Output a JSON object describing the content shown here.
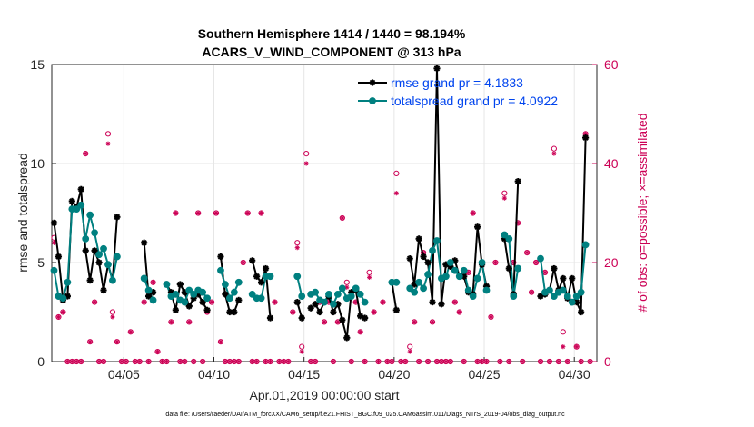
{
  "chart_data": {
    "type": "line",
    "title_line1": "Southern Hemisphere 1414 / 1440 = 98.194%",
    "title_line2": "ACARS_V_WIND_COMPONENT @ 313 hPa",
    "xlabel": "Apr.01,2019 00:00:00 start",
    "ylabel": "rmse and totalspread",
    "ylabel_right": "# of obs: o=possible; ×=assimilated",
    "footnote": "data file: /Users/raeder/DAI/ATM_forcXX/CAM6_setup/f.e21.FHIST_BGC.f09_025.CAM6assim.011/Diags_NTrS_2019-04/obs_diag_output.nc",
    "xlim": [
      1.0,
      31.25
    ],
    "ylim": [
      0,
      15
    ],
    "ylim_right": [
      0,
      60
    ],
    "xticks": [
      5,
      10,
      15,
      20,
      25,
      30
    ],
    "xtick_labels": [
      "04/05",
      "04/10",
      "04/15",
      "04/20",
      "04/25",
      "04/30"
    ],
    "yticks": [
      0,
      5,
      10,
      15
    ],
    "yticks_right": [
      0,
      20,
      40,
      60
    ],
    "colors": {
      "rmse": "#000000",
      "spread": "#008080",
      "obs": "#cc0055",
      "legend_text": "#0044ee"
    },
    "series": [
      {
        "name": "rmse grand pr = 4.1833",
        "x": [
          1.125,
          1.375,
          1.625,
          1.875,
          2.125,
          2.375,
          2.625,
          2.875,
          3.125,
          3.375,
          3.625,
          3.875,
          4.125,
          4.375,
          4.625,
          4.875,
          5.125,
          5.375,
          5.625,
          5.875,
          6.125,
          6.375,
          6.625,
          6.875,
          7.125,
          7.375,
          7.625,
          7.875,
          8.125,
          8.375,
          8.625,
          8.875,
          9.125,
          9.375,
          9.625,
          9.875,
          10.125,
          10.375,
          10.625,
          10.875,
          11.125,
          11.375,
          11.625,
          11.875,
          12.125,
          12.375,
          12.625,
          12.875,
          13.125,
          13.375,
          13.625,
          13.875,
          14.125,
          14.375,
          14.625,
          14.875,
          15.125,
          15.375,
          15.625,
          15.875,
          16.125,
          16.375,
          16.625,
          16.875,
          17.125,
          17.375,
          17.625,
          17.875,
          18.125,
          18.375,
          18.625,
          18.875,
          19.125,
          19.375,
          19.625,
          19.875,
          20.125,
          20.375,
          20.625,
          20.875,
          21.125,
          21.375,
          21.625,
          21.875,
          22.125,
          22.375,
          22.625,
          22.875,
          23.125,
          23.375,
          23.625,
          23.875,
          24.125,
          24.375,
          24.625,
          24.875,
          25.125,
          25.375,
          25.625,
          25.875,
          26.125,
          26.375,
          26.625,
          26.875,
          27.125,
          27.375,
          27.625,
          27.875,
          28.125,
          28.375,
          28.625,
          28.875,
          29.125,
          29.375,
          29.625,
          29.875,
          30.125,
          30.375,
          30.625,
          30.875
        ],
        "y": [
          7.0,
          5.3,
          3.1,
          3.3,
          8.1,
          7.8,
          8.7,
          5.6,
          4.1,
          5.6,
          5.0,
          3.6,
          4.9,
          4.1,
          7.3,
          null,
          null,
          null,
          null,
          null,
          6.0,
          3.3,
          3.5,
          null,
          null,
          3.9,
          3.5,
          2.6,
          3.9,
          3.5,
          2.8,
          3.2,
          3.4,
          3.0,
          2.6,
          null,
          null,
          5.3,
          3.4,
          2.5,
          2.5,
          3.1,
          null,
          null,
          5.1,
          4.3,
          4.0,
          4.7,
          2.2,
          null,
          null,
          null,
          null,
          null,
          3.0,
          2.2,
          null,
          2.7,
          2.9,
          2.5,
          3.0,
          3.3,
          2.5,
          2.9,
          2.1,
          1.2,
          3.5,
          3.6,
          2.3,
          2.2,
          null,
          null,
          null,
          null,
          null,
          4.0,
          2.6,
          null,
          null,
          5.2,
          3.9,
          6.2,
          5.3,
          5.0,
          3.0,
          14.8,
          2.9,
          4.9,
          4.8,
          5.1,
          4.3,
          4.3,
          3.5,
          3.4,
          6.8,
          4.9,
          3.8,
          null,
          null,
          null,
          6.2,
          4.7,
          3.4,
          9.1,
          null,
          null,
          null,
          null,
          3.3,
          3.4,
          3.6,
          4.7,
          3.6,
          4.2,
          3.2,
          4.2,
          3.0,
          2.5,
          11.3,
          null
        ],
        "marker": "asterisk"
      },
      {
        "name": "totalspread grand pr = 4.0922",
        "x": [
          1.125,
          1.375,
          1.625,
          1.875,
          2.125,
          2.375,
          2.625,
          2.875,
          3.125,
          3.375,
          3.625,
          3.875,
          4.125,
          4.375,
          4.625,
          4.875,
          5.125,
          5.375,
          5.625,
          5.875,
          6.125,
          6.375,
          6.625,
          6.875,
          7.125,
          7.375,
          7.625,
          7.875,
          8.125,
          8.375,
          8.625,
          8.875,
          9.125,
          9.375,
          9.625,
          9.875,
          10.125,
          10.375,
          10.625,
          10.875,
          11.125,
          11.375,
          11.625,
          11.875,
          12.125,
          12.375,
          12.625,
          12.875,
          13.125,
          13.375,
          13.625,
          13.875,
          14.125,
          14.375,
          14.625,
          14.875,
          15.125,
          15.375,
          15.625,
          15.875,
          16.125,
          16.375,
          16.625,
          16.875,
          17.125,
          17.375,
          17.625,
          17.875,
          18.125,
          18.375,
          18.625,
          18.875,
          19.125,
          19.375,
          19.625,
          19.875,
          20.125,
          20.375,
          20.625,
          20.875,
          21.125,
          21.375,
          21.625,
          21.875,
          22.125,
          22.375,
          22.625,
          22.875,
          23.125,
          23.375,
          23.625,
          23.875,
          24.125,
          24.375,
          24.625,
          24.875,
          25.125,
          25.375,
          25.625,
          25.875,
          26.125,
          26.375,
          26.625,
          26.875,
          27.125,
          27.375,
          27.625,
          27.875,
          28.125,
          28.375,
          28.625,
          28.875,
          29.125,
          29.375,
          29.625,
          29.875,
          30.125,
          30.375,
          30.625,
          30.875
        ],
        "y": [
          4.6,
          3.3,
          3.2,
          4.0,
          7.7,
          7.7,
          7.9,
          6.2,
          7.4,
          6.5,
          5.4,
          5.7,
          4.9,
          4.1,
          5.3,
          null,
          null,
          null,
          null,
          null,
          4.2,
          3.6,
          3.1,
          null,
          null,
          3.9,
          3.3,
          3.4,
          3.1,
          3.0,
          3.6,
          3.4,
          3.6,
          3.5,
          3.2,
          null,
          null,
          4.6,
          3.9,
          3.2,
          3.5,
          4.0,
          null,
          null,
          3.4,
          3.2,
          3.2,
          4.3,
          4.3,
          null,
          null,
          null,
          null,
          null,
          4.3,
          3.3,
          null,
          3.4,
          3.5,
          3.1,
          3.0,
          3.4,
          2.9,
          3.4,
          3.7,
          3.2,
          3.3,
          3.7,
          3.4,
          3.0,
          null,
          null,
          null,
          null,
          null,
          4.0,
          4.0,
          null,
          null,
          3.7,
          3.5,
          4.0,
          3.7,
          4.4,
          5.6,
          6.1,
          4.2,
          4.3,
          5.0,
          4.6,
          4.3,
          4.6,
          3.6,
          3.3,
          4.2,
          5.0,
          3.6,
          null,
          null,
          null,
          6.4,
          6.2,
          3.3,
          4.7,
          null,
          null,
          null,
          null,
          5.2,
          3.5,
          3.6,
          3.3,
          3.5,
          3.6,
          3.3,
          3.0,
          3.3,
          3.5,
          5.9,
          null
        ],
        "marker": "circle"
      },
      {
        "name": "obs possible",
        "x": [
          1.125,
          1.375,
          1.625,
          1.875,
          2.125,
          2.375,
          2.625,
          2.875,
          3.125,
          3.375,
          3.625,
          3.875,
          4.125,
          4.375,
          4.625,
          4.875,
          5.125,
          5.375,
          5.625,
          5.875,
          6.125,
          6.375,
          6.625,
          6.875,
          7.125,
          7.375,
          7.625,
          7.875,
          8.125,
          8.375,
          8.625,
          8.875,
          9.125,
          9.375,
          9.625,
          9.875,
          10.125,
          10.375,
          10.625,
          10.875,
          11.125,
          11.375,
          11.625,
          11.875,
          12.125,
          12.375,
          12.625,
          12.875,
          13.125,
          13.375,
          13.625,
          13.875,
          14.125,
          14.375,
          14.625,
          14.875,
          15.125,
          15.375,
          15.625,
          15.875,
          16.125,
          16.375,
          16.625,
          16.875,
          17.125,
          17.375,
          17.625,
          17.875,
          18.125,
          18.375,
          18.625,
          18.875,
          19.125,
          19.375,
          19.625,
          19.875,
          20.125,
          20.375,
          20.625,
          20.875,
          21.125,
          21.375,
          21.625,
          21.875,
          22.125,
          22.375,
          22.625,
          22.875,
          23.125,
          23.375,
          23.625,
          23.875,
          24.125,
          24.375,
          24.625,
          24.875,
          25.125,
          25.375,
          25.625,
          25.875,
          26.125,
          26.375,
          26.625,
          26.875,
          27.125,
          27.375,
          27.625,
          27.875,
          28.125,
          28.375,
          28.625,
          28.875,
          29.125,
          29.375,
          29.625,
          29.875,
          30.125,
          30.375,
          30.625,
          30.875
        ],
        "y": [
          25,
          9,
          10,
          0,
          0,
          0,
          0,
          42,
          4,
          12,
          0,
          0,
          46,
          10,
          4,
          0,
          0,
          6,
          0,
          0,
          12,
          0,
          16,
          2,
          0,
          0,
          8,
          30,
          0,
          0,
          8,
          0,
          30,
          0,
          10,
          12,
          30,
          4,
          0,
          0,
          0,
          0,
          20,
          30,
          0,
          0,
          30,
          0,
          0,
          12,
          0,
          0,
          0,
          10,
          24,
          3,
          42,
          0,
          0,
          12,
          8,
          12,
          0,
          8,
          29,
          16,
          0,
          12,
          6,
          0,
          18,
          10,
          0,
          12,
          0,
          0,
          38,
          0,
          0,
          3,
          8,
          0,
          22,
          0,
          8,
          0,
          0,
          0,
          0,
          12,
          10,
          0,
          18,
          30,
          0,
          0,
          0,
          9,
          20,
          0,
          34,
          0,
          20,
          28,
          0,
          22,
          14,
          20,
          0,
          18,
          0,
          43,
          0,
          6,
          0,
          12,
          3,
          0,
          46,
          0
        ],
        "marker": "open-circle"
      },
      {
        "name": "obs assimilated",
        "x": [
          1.125,
          1.375,
          1.625,
          1.875,
          2.125,
          2.375,
          2.625,
          2.875,
          3.125,
          3.375,
          3.625,
          3.875,
          4.125,
          4.375,
          4.625,
          4.875,
          5.125,
          5.375,
          5.625,
          5.875,
          6.125,
          6.375,
          6.625,
          6.875,
          7.125,
          7.375,
          7.625,
          7.875,
          8.125,
          8.375,
          8.625,
          8.875,
          9.125,
          9.375,
          9.625,
          9.875,
          10.125,
          10.375,
          10.625,
          10.875,
          11.125,
          11.375,
          11.625,
          11.875,
          12.125,
          12.375,
          12.625,
          12.875,
          13.125,
          13.375,
          13.625,
          13.875,
          14.125,
          14.375,
          14.625,
          14.875,
          15.125,
          15.375,
          15.625,
          15.875,
          16.125,
          16.375,
          16.625,
          16.875,
          17.125,
          17.375,
          17.625,
          17.875,
          18.125,
          18.375,
          18.625,
          18.875,
          19.125,
          19.375,
          19.625,
          19.875,
          20.125,
          20.375,
          20.625,
          20.875,
          21.125,
          21.375,
          21.625,
          21.875,
          22.125,
          22.375,
          22.625,
          22.875,
          23.125,
          23.375,
          23.625,
          23.875,
          24.125,
          24.375,
          24.625,
          24.875,
          25.125,
          25.375,
          25.625,
          25.875,
          26.125,
          26.375,
          26.625,
          26.875,
          27.125,
          27.375,
          27.625,
          27.875,
          28.125,
          28.375,
          28.625,
          28.875,
          29.125,
          29.375,
          29.625,
          29.875,
          30.125,
          30.375,
          30.625,
          30.875
        ],
        "y": [
          24,
          9,
          10,
          0,
          0,
          0,
          0,
          42,
          4,
          12,
          0,
          0,
          44,
          9,
          4,
          0,
          0,
          6,
          0,
          0,
          12,
          0,
          16,
          2,
          0,
          0,
          8,
          30,
          0,
          0,
          8,
          0,
          30,
          0,
          10,
          12,
          30,
          4,
          0,
          0,
          0,
          0,
          20,
          30,
          0,
          0,
          30,
          0,
          0,
          12,
          0,
          0,
          0,
          10,
          23,
          2,
          40,
          0,
          0,
          12,
          8,
          12,
          0,
          8,
          29,
          15,
          0,
          12,
          6,
          0,
          17,
          10,
          0,
          12,
          0,
          0,
          34,
          0,
          0,
          2,
          8,
          0,
          22,
          0,
          8,
          0,
          0,
          0,
          0,
          12,
          10,
          0,
          18,
          30,
          0,
          0,
          0,
          9,
          20,
          0,
          33,
          0,
          20,
          28,
          0,
          22,
          14,
          20,
          0,
          18,
          0,
          42,
          0,
          3,
          0,
          12,
          3,
          0,
          46,
          0
        ],
        "marker": "asterisk"
      }
    ]
  }
}
